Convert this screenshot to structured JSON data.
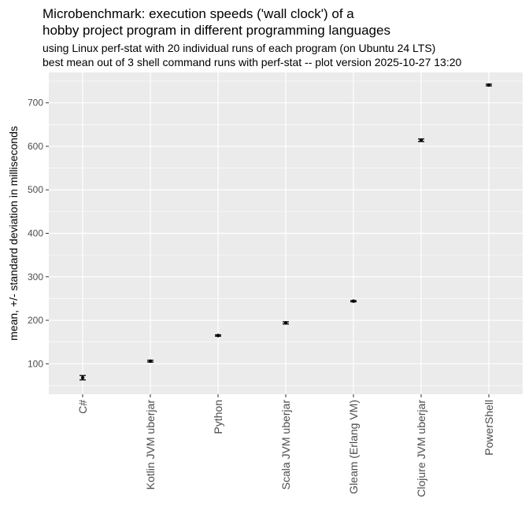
{
  "chart_data": {
    "type": "scatter",
    "title_lines": [
      "Microbenchmark: execution speeds ('wall clock') of a",
      "hobby project program in different programming languages"
    ],
    "subtitle_lines": [
      "using Linux perf-stat with 20 individual runs of each program (on Ubuntu 24 LTS)",
      "best mean out of 3 shell command runs with perf-stat -- plot version 2025-10-27 13:20"
    ],
    "xlabel": "",
    "ylabel": "mean, +/- standard deviation in milliseconds",
    "categories": [
      "C#",
      "Kotlin JVM uberjar",
      "Python",
      "Scala JVM uberjar",
      "Gleam (Erlang VM)",
      "Clojure JVM uberjar",
      "PowerShell"
    ],
    "series": [
      {
        "values": [
          68,
          106,
          165,
          194,
          244,
          614,
          741
        ],
        "sd": [
          5,
          2,
          1.5,
          2.5,
          1.5,
          3,
          2
        ]
      }
    ],
    "ylim": [
      30,
      770
    ],
    "yticks": [
      100,
      200,
      300,
      400,
      500,
      600,
      700
    ],
    "grid": true,
    "legend": "none",
    "colors": {
      "panel": "#ebebeb",
      "grid_major": "#ffffff",
      "point": "#000000",
      "tick_text": "#4d4d4d"
    }
  }
}
